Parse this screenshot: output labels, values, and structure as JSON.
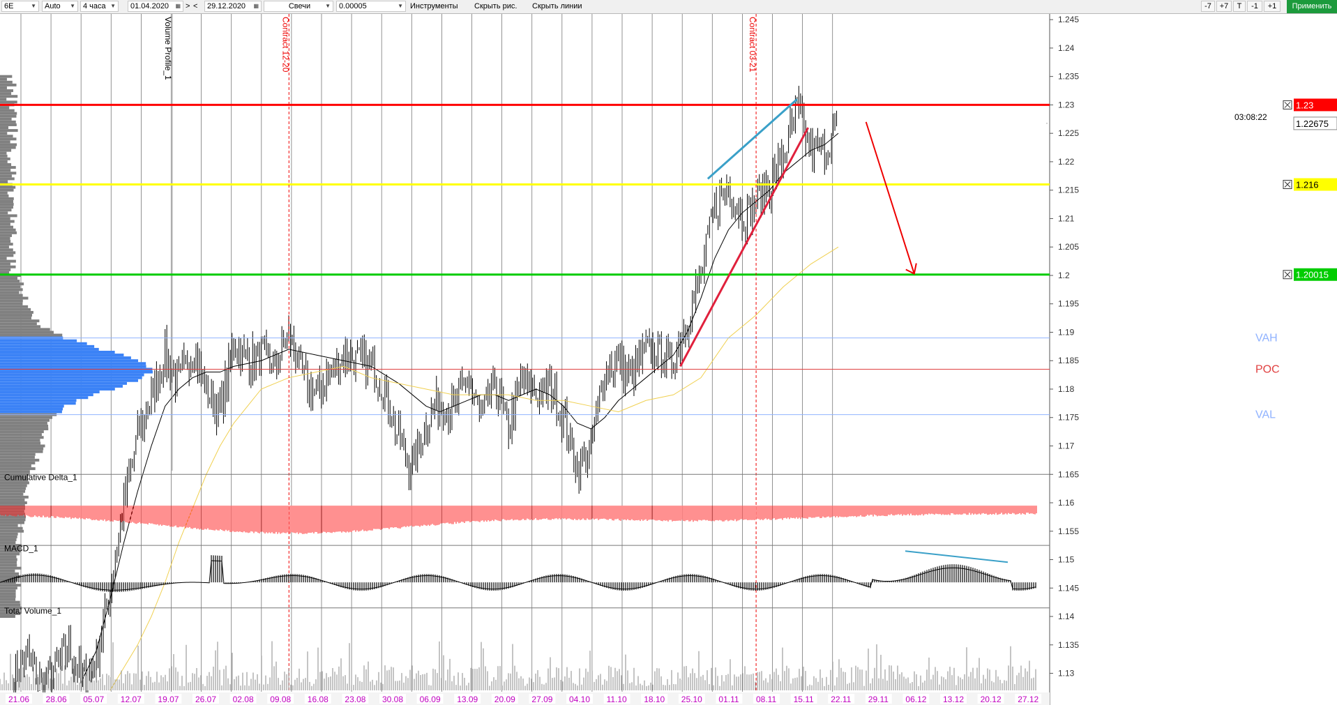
{
  "toolbar": {
    "symbol": "6E",
    "mode": "Auto",
    "timeframe": "4 часа",
    "date_from": "01.04.2020",
    "nav_next": ">",
    "nav_prev": "<",
    "date_to": "29.12.2020",
    "chart_style": "Свечи",
    "tick_size": "0.00005",
    "tools_label": "Инструменты",
    "hide_drawings_label": "Скрыть рис.",
    "hide_lines_label": "Скрыть линии",
    "zoom_buttons": [
      "-7",
      "+7",
      "T",
      "-1",
      "+1"
    ],
    "apply_label": "Применить"
  },
  "colors": {
    "resistance": "#ff0000",
    "mid_level": "#ffff00",
    "support": "#00cc00",
    "profile": "#3b82f6",
    "vah_val": "#8fb2ff",
    "poc": "#e04040",
    "delta": "#ff2020",
    "trend_blue": "#3aa0c8",
    "trend_red": "#e0203c",
    "ma_fast": "#000000",
    "ma_slow": "#f0d050",
    "date_label": "#c000c0"
  },
  "chart_data": {
    "type": "candlestick",
    "instrument": "6E",
    "timeframe": "4 часа",
    "ylim": [
      1.127,
      1.246
    ],
    "y_ticks": [
      1.13,
      1.135,
      1.14,
      1.145,
      1.15,
      1.155,
      1.16,
      1.165,
      1.17,
      1.175,
      1.18,
      1.185,
      1.19,
      1.195,
      1.2,
      1.205,
      1.21,
      1.215,
      1.22,
      1.225,
      1.23,
      1.235,
      1.24,
      1.245
    ],
    "x_date_labels": [
      "21.06",
      "28.06",
      "05.07",
      "12.07",
      "19.07",
      "26.07",
      "02.08",
      "09.08",
      "16.08",
      "23.08",
      "30.08",
      "06.09",
      "13.09",
      "20.09",
      "27.09",
      "04.10",
      "11.10",
      "18.10",
      "25.10",
      "01.11",
      "08.11",
      "15.11",
      "22.11",
      "29.11",
      "06.12",
      "13.12",
      "20.12",
      "27.12"
    ],
    "close_path": [
      [
        0,
        1.13
      ],
      [
        1,
        1.133
      ],
      [
        2,
        1.128
      ],
      [
        3,
        1.131
      ],
      [
        4,
        1.134
      ],
      [
        5,
        1.129
      ],
      [
        6,
        1.132
      ],
      [
        7,
        1.145
      ],
      [
        8,
        1.16
      ],
      [
        9,
        1.172
      ],
      [
        10,
        1.178
      ],
      [
        11,
        1.186
      ],
      [
        12,
        1.181
      ],
      [
        13,
        1.187
      ],
      [
        14,
        1.18
      ],
      [
        15,
        1.176
      ],
      [
        16,
        1.188
      ],
      [
        17,
        1.185
      ],
      [
        18,
        1.186
      ],
      [
        19,
        1.184
      ],
      [
        20,
        1.19
      ],
      [
        21,
        1.182
      ],
      [
        22,
        1.179
      ],
      [
        23,
        1.183
      ],
      [
        24,
        1.186
      ],
      [
        25,
        1.185
      ],
      [
        26,
        1.184
      ],
      [
        27,
        1.18
      ],
      [
        28,
        1.171
      ],
      [
        29,
        1.166
      ],
      [
        30,
        1.174
      ],
      [
        31,
        1.178
      ],
      [
        32,
        1.176
      ],
      [
        33,
        1.182
      ],
      [
        34,
        1.175
      ],
      [
        35,
        1.181
      ],
      [
        36,
        1.173
      ],
      [
        37,
        1.182
      ],
      [
        38,
        1.179
      ],
      [
        39,
        1.18
      ],
      [
        40,
        1.175
      ],
      [
        41,
        1.166
      ],
      [
        42,
        1.17
      ],
      [
        43,
        1.183
      ],
      [
        44,
        1.185
      ],
      [
        45,
        1.182
      ],
      [
        46,
        1.187
      ],
      [
        47,
        1.186
      ],
      [
        48,
        1.185
      ],
      [
        49,
        1.192
      ],
      [
        50,
        1.2
      ],
      [
        51,
        1.212
      ],
      [
        52,
        1.216
      ],
      [
        53,
        1.21
      ],
      [
        54,
        1.213
      ],
      [
        55,
        1.216
      ],
      [
        56,
        1.221
      ],
      [
        57,
        1.229
      ],
      [
        58,
        1.222
      ],
      [
        59,
        1.222
      ],
      [
        60,
        1.227
      ]
    ],
    "ma_fast": [
      [
        5,
        1.129
      ],
      [
        6,
        1.134
      ],
      [
        7,
        1.143
      ],
      [
        8,
        1.153
      ],
      [
        9,
        1.162
      ],
      [
        10,
        1.17
      ],
      [
        11,
        1.177
      ],
      [
        12,
        1.18
      ],
      [
        13,
        1.182
      ],
      [
        14,
        1.183
      ],
      [
        15,
        1.183
      ],
      [
        16,
        1.184
      ],
      [
        18,
        1.185
      ],
      [
        20,
        1.187
      ],
      [
        22,
        1.186
      ],
      [
        24,
        1.185
      ],
      [
        26,
        1.184
      ],
      [
        28,
        1.181
      ],
      [
        30,
        1.177
      ],
      [
        31,
        1.176
      ],
      [
        32,
        1.177
      ],
      [
        33,
        1.178
      ],
      [
        34,
        1.179
      ],
      [
        35,
        1.179
      ],
      [
        36,
        1.178
      ],
      [
        37,
        1.179
      ],
      [
        38,
        1.18
      ],
      [
        39,
        1.179
      ],
      [
        40,
        1.177
      ],
      [
        41,
        1.174
      ],
      [
        42,
        1.173
      ],
      [
        43,
        1.175
      ],
      [
        44,
        1.178
      ],
      [
        45,
        1.18
      ],
      [
        46,
        1.182
      ],
      [
        47,
        1.184
      ],
      [
        48,
        1.186
      ],
      [
        49,
        1.19
      ],
      [
        50,
        1.196
      ],
      [
        51,
        1.203
      ],
      [
        52,
        1.208
      ],
      [
        53,
        1.211
      ],
      [
        54,
        1.213
      ],
      [
        55,
        1.215
      ],
      [
        56,
        1.218
      ],
      [
        57,
        1.22
      ],
      [
        58,
        1.222
      ],
      [
        59,
        1.223
      ],
      [
        60,
        1.225
      ]
    ],
    "ma_slow": [
      [
        7,
        1.127
      ],
      [
        8,
        1.131
      ],
      [
        9,
        1.135
      ],
      [
        10,
        1.14
      ],
      [
        11,
        1.146
      ],
      [
        12,
        1.153
      ],
      [
        13,
        1.159
      ],
      [
        14,
        1.165
      ],
      [
        15,
        1.17
      ],
      [
        16,
        1.174
      ],
      [
        17,
        1.177
      ],
      [
        18,
        1.18
      ],
      [
        19,
        1.181
      ],
      [
        20,
        1.182
      ],
      [
        22,
        1.183
      ],
      [
        24,
        1.184
      ],
      [
        26,
        1.182
      ],
      [
        28,
        1.181
      ],
      [
        30,
        1.18
      ],
      [
        32,
        1.179
      ],
      [
        34,
        1.179
      ],
      [
        36,
        1.179
      ],
      [
        38,
        1.178
      ],
      [
        40,
        1.178
      ],
      [
        42,
        1.177
      ],
      [
        44,
        1.176
      ],
      [
        46,
        1.178
      ],
      [
        48,
        1.179
      ],
      [
        50,
        1.182
      ],
      [
        52,
        1.189
      ],
      [
        54,
        1.193
      ],
      [
        56,
        1.198
      ],
      [
        58,
        1.202
      ],
      [
        60,
        1.205
      ]
    ],
    "levels": [
      {
        "price": 1.23,
        "label": "1.23",
        "color": "#ff0000"
      },
      {
        "price": 1.216,
        "label": "1.216",
        "color": "#ffff00"
      },
      {
        "price": 1.20015,
        "label": "1.20015",
        "color": "#00cc00"
      }
    ],
    "current_price": {
      "value": 1.22675,
      "label": "1.22675",
      "timer": "03:08:22"
    },
    "volume_profile": {
      "name": "Volume Profile_1",
      "vah": {
        "price": 1.189,
        "label": "VAH"
      },
      "poc": {
        "price": 1.1835,
        "label": "POC"
      },
      "val": {
        "price": 1.1755,
        "label": "VAL"
      }
    },
    "contract_lines": [
      {
        "label": "Contract 12-20",
        "x_index": 19
      },
      {
        "label": "Contract 03-21",
        "x_index": 53
      }
    ],
    "annotations": {
      "arrow_from": [
        61,
        1.227
      ],
      "arrow_to": [
        64,
        1.2003
      ]
    },
    "indicators": [
      {
        "name": "Cumulative Delta_1",
        "type": "bar",
        "color": "#ff2020"
      },
      {
        "name": "MACD_1",
        "type": "histogram",
        "color": "#000000"
      },
      {
        "name": "Total Volume_1",
        "type": "bar",
        "color": "#808080"
      }
    ]
  }
}
